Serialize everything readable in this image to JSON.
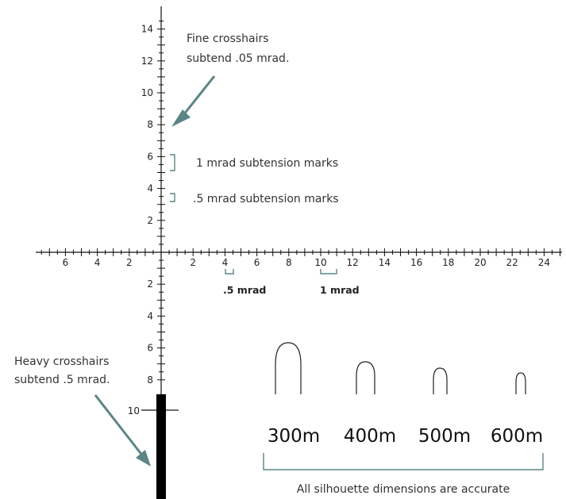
{
  "annotations": {
    "fine_crosshairs": [
      "Fine crosshairs",
      "subtend .05 mrad."
    ],
    "heavy_crosshairs": [
      "Heavy crosshairs",
      "subtend .5 mrad."
    ],
    "one_mrad_marks": "1 mrad subtension marks",
    "half_mrad_marks": ".5 mrad subtension marks",
    "half_mrad_label": ".5 mrad",
    "one_mrad_label": "1 mrad",
    "silhouette_caption": "All silhouette dimensions are accurate"
  },
  "axes": {
    "upper_vertical_labels": [
      "14",
      "12",
      "10",
      "8",
      "6",
      "4",
      "2"
    ],
    "lower_vertical_labels": [
      "2",
      "4",
      "6",
      "8"
    ],
    "heavy_post_label": "10",
    "left_horizontal_labels": [
      "6",
      "4",
      "2"
    ],
    "right_horizontal_labels": [
      "2",
      "4",
      "6",
      "8",
      "10",
      "12",
      "14",
      "16",
      "18",
      "20",
      "22",
      "24"
    ]
  },
  "ranges": [
    "300m",
    "400m",
    "500m",
    "600m"
  ],
  "colors": {
    "accent": "#5a8585",
    "ink": "#111111"
  }
}
